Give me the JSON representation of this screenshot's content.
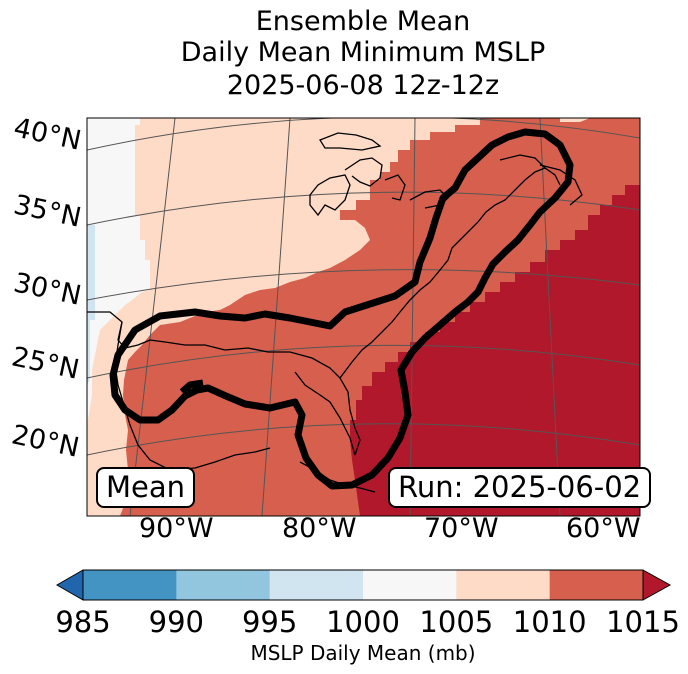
{
  "title": {
    "line1": "Ensemble Mean",
    "line2": "Daily Mean Minimum MSLP",
    "line3": "2025-06-08 12z-12z"
  },
  "map": {
    "lat_labels": [
      "40°N",
      "35°N",
      "30°N",
      "25°N",
      "20°N"
    ],
    "lon_labels": [
      "90°W",
      "80°W",
      "70°W",
      "60°W"
    ],
    "mean_box": "Mean",
    "run_box": "Run: 2025-06-02",
    "colors": {
      "ocean_high": "#b2182b",
      "band_1010": "#d6604d",
      "band_1005": "#fddbc7",
      "band_1000": "#f7f7f7",
      "band_995": "#d1e5f0",
      "contour": "#000000",
      "coast": "#000000",
      "grid": "#555555"
    }
  },
  "colorbar": {
    "title": "MSLP Daily Mean (mb)",
    "ticks": [
      "985",
      "990",
      "995",
      "1000",
      "1005",
      "1010",
      "1015"
    ],
    "colors": [
      "#4393c3",
      "#92c5de",
      "#d1e5f0",
      "#f7f7f7",
      "#fddbc7",
      "#d6604d"
    ],
    "under_color": "#2166ac",
    "over_color": "#b2182b"
  }
}
